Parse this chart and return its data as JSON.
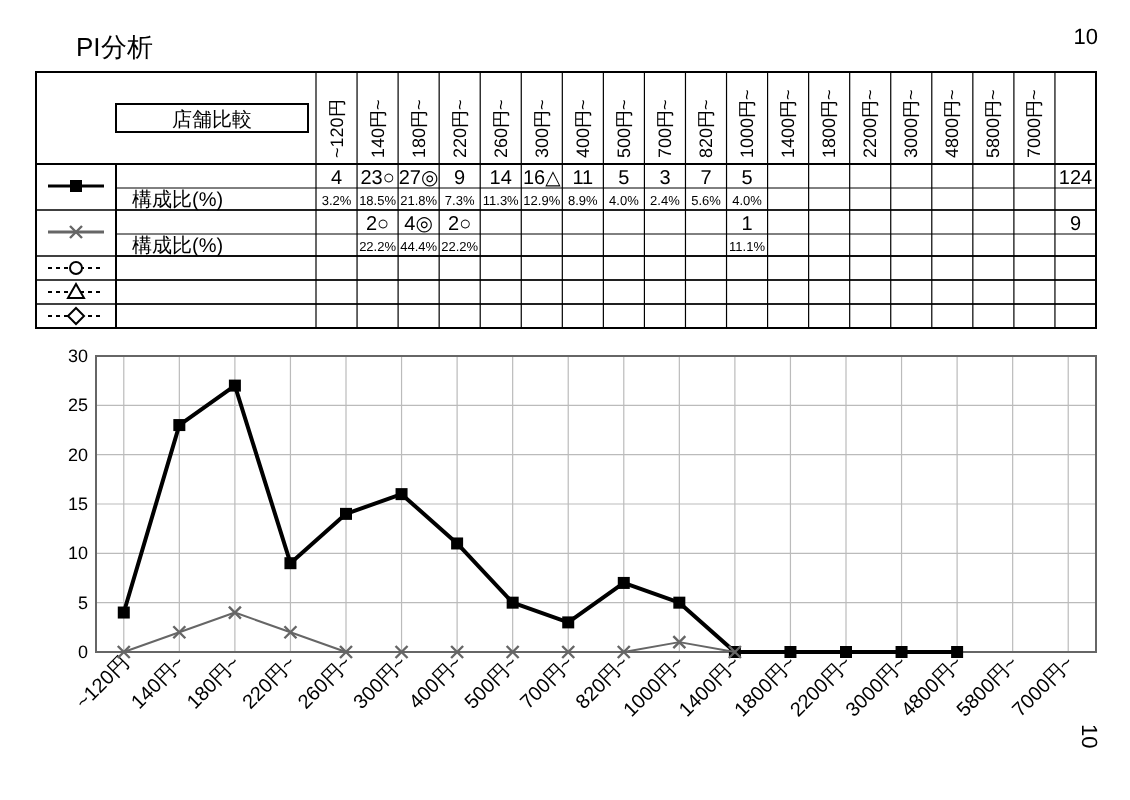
{
  "chart_data": {
    "type": "line",
    "title": "PI分析",
    "categories": [
      "~120円",
      "140円~",
      "180円~",
      "220円~",
      "260円~",
      "300円~",
      "400円~",
      "500円~",
      "700円~",
      "820円~",
      "1000円~",
      "1400円~",
      "1800円~",
      "2200円~",
      "3000円~",
      "4800円~",
      "5800円~",
      "7000円~"
    ],
    "series": [
      {
        "color": "#000000",
        "marker": "square",
        "values": [
          4,
          23,
          27,
          9,
          14,
          16,
          11,
          5,
          3,
          7,
          5,
          0,
          0,
          0,
          0,
          0,
          null,
          null
        ]
      },
      {
        "color": "#666666",
        "marker": "cross",
        "values": [
          0,
          2,
          4,
          2,
          0,
          0,
          0,
          0,
          0,
          0,
          1,
          0,
          null,
          null,
          null,
          null,
          null,
          null
        ]
      }
    ],
    "ylim": [
      0,
      30
    ],
    "yticks": [
      0,
      5,
      10,
      15,
      20,
      25,
      30
    ],
    "grid": true,
    "annotations": [
      "10",
      "店舗比較",
      "構成比(%)",
      "構成比(%)",
      "124",
      "9",
      "10",
      "4",
      "23○",
      "27◎",
      "9",
      "14",
      "16△",
      "11",
      "5",
      "3",
      "7",
      "5",
      null,
      null,
      null,
      null,
      null,
      null,
      null,
      "3.2%",
      "18.5%",
      "21.8%",
      "7.3%",
      "11.3%",
      "12.9%",
      "8.9%",
      "4.0%",
      "2.4%",
      "5.6%",
      "4.0%",
      null,
      null,
      null,
      null,
      null,
      null,
      null,
      null,
      "2○",
      "4◎",
      "2○",
      null,
      null,
      null,
      null,
      null,
      null,
      "1",
      null,
      null,
      null,
      null,
      null,
      null,
      null,
      null,
      "22.2%",
      "44.4%",
      "22.2%",
      null,
      null,
      null,
      null,
      null,
      null,
      "11.1%",
      null,
      null,
      null,
      null,
      null,
      null,
      null
    ]
  }
}
